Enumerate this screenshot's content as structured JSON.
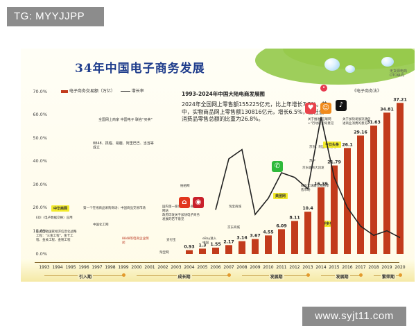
{
  "watermarks": {
    "top_left": "TG: MYYJJPP",
    "bottom_right": "www.syjt11.com"
  },
  "header": {
    "title": "34年中国电子商务发展",
    "subtitle": "1993-2024年中国大陆电商发展图",
    "legend_bar": "电子商务交易额（万亿）",
    "legend_line": "增长率",
    "right_note": "《电子商务法》",
    "top_right_note": "无货源电商 OTO纵向"
  },
  "info_text": "2024年全国网上零售额155225亿元，比上年增长7.2%。其中，实物商品网上零售额130816亿元，增长6.5%，占社会消费品零售总额的比重为26.8%。",
  "annotations": {
    "a1": "全国网上商家 中国电子 联名\"买卖\"",
    "a2": "8848、携程、易趣、阿里巴巴、当当等成立",
    "a3": "第一个在线商品采购商场：中国商品交易市场",
    "a4": "EDI（电子数据交换）应用",
    "a5": "正式启动国家经济信息化战略工程：\"三金工程\"，金卡工程、金关工程、金税工程",
    "a6": "中国化工网",
    "a7": "8848等电商企业倒闭",
    "a8": "国内第一家C2C电子商务网站",
    "a9": "政府印发关于加快电子商务发展的若干意见",
    "a10": "淘宝网",
    "a11": "eBay进入中国",
    "a12": "支付宝",
    "a13": "拍拍网",
    "a14": "淘宝商城",
    "a15": "京东商城",
    "a16": "成为全球最大网络零售市场",
    "a17": "关于推进\"互联网+\"行动的指导意见",
    "a18": "关于加快发展流通促进商业消费的意见",
    "a19": "京东、阿里、拼多多",
    "a20": "苏宁",
    "a21": "中华商网",
    "a22": "美团网",
    "a23": "拼多多",
    "a24": "今日头条",
    "a25": "京东收购大润发"
  },
  "timeline": {
    "years": [
      "1993",
      "1994",
      "1995",
      "1996",
      "1997",
      "1998",
      "1999",
      "2000",
      "2001",
      "2002",
      "2003",
      "2004",
      "2005",
      "2006",
      "2007",
      "2008",
      "2009",
      "2010",
      "2011",
      "2012",
      "2013",
      "2014",
      "2015",
      "2016",
      "2017",
      "2018",
      "2019",
      "2020"
    ],
    "phases": [
      {
        "label": "引入期"
      },
      {
        "label": "成长期"
      },
      {
        "label": "发展期"
      },
      {
        "label": "发展期"
      },
      {
        "label": "繁荣期"
      }
    ]
  },
  "chart_data": {
    "type": "bar",
    "title": "34年中国电子商务发展",
    "subtitle": "1993-2024年中国大陆电商发展图",
    "categories": [
      "2004",
      "2005",
      "2006",
      "2007",
      "2008",
      "2009",
      "2010",
      "2011",
      "2012",
      "2013",
      "2014",
      "2015",
      "2016",
      "2017",
      "2018",
      "2019",
      "2020"
    ],
    "series": [
      {
        "name": "电子商务交易额（万亿）",
        "type": "bar",
        "values": [
          0.93,
          1.3,
          1.55,
          2.17,
          3.14,
          3.67,
          4.55,
          6.09,
          8.11,
          10.4,
          16.39,
          21.79,
          26.1,
          29.16,
          31.63,
          34.81,
          37.21
        ],
        "color": "#c23b1c"
      },
      {
        "name": "增长率",
        "type": "line",
        "x": [
          "2006",
          "2007",
          "2008",
          "2009",
          "2010",
          "2011",
          "2012",
          "2013",
          "2014",
          "2015",
          "2016",
          "2017",
          "2018",
          "2019",
          "2020"
        ],
        "values": [
          19,
          41,
          45,
          17,
          24,
          35,
          33,
          28,
          59,
          33,
          20,
          12,
          8,
          10,
          7
        ],
        "color": "#222222"
      }
    ],
    "y_axis_ticks": [
      "0.0%",
      "10.0%",
      "20.0%",
      "30.0%",
      "40.0%",
      "50.0%",
      "60.0%",
      "70.0%"
    ],
    "ylim_percent": [
      0,
      70
    ],
    "ylim_value": [
      0,
      40
    ],
    "grid": false,
    "legend_position": "top-left"
  },
  "colors": {
    "bar": "#c23b1c",
    "line": "#222222",
    "title": "#1f3d8c",
    "accent_green": "#8dc63f",
    "tag_yellow": "#f2ea2a"
  }
}
